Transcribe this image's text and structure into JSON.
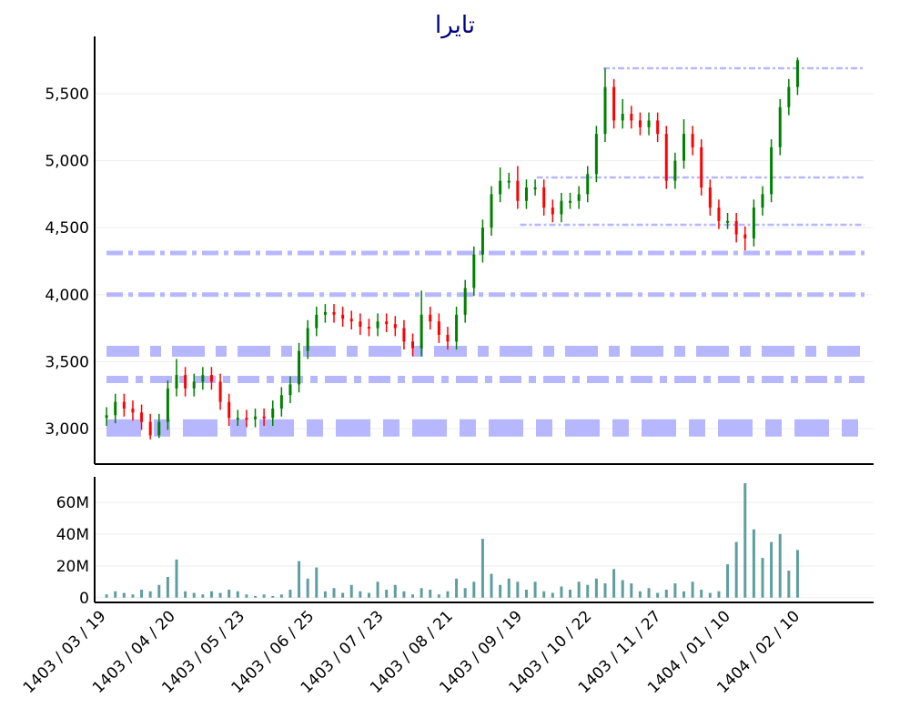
{
  "chart_data": {
    "type": "candlestick",
    "title": "تایرا",
    "colors": {
      "up": "#008000",
      "down": "#ff0000",
      "volume": "#5f9ea0",
      "level": "#b3b3ff",
      "title": "#000080",
      "grid": "#eeeeee"
    },
    "x_end_index": 249,
    "xlim": [
      -4.3,
      276.4
    ],
    "x_ticks": [
      {
        "index": 0,
        "label": "1403 / 03 / 19"
      },
      {
        "index": 25,
        "label": "1403 / 04 / 20"
      },
      {
        "index": 50,
        "label": "1403 / 05 / 23"
      },
      {
        "index": 75,
        "label": "1403 / 06 / 25"
      },
      {
        "index": 100,
        "label": "1403 / 07 / 23"
      },
      {
        "index": 125,
        "label": "1403 / 08 / 21"
      },
      {
        "index": 150,
        "label": "1403 / 09 / 19"
      },
      {
        "index": 175,
        "label": "1403 / 10 / 22"
      },
      {
        "index": 200,
        "label": "1403 / 11 / 27"
      },
      {
        "index": 225,
        "label": "1404 / 01 / 10"
      },
      {
        "index": 250,
        "label": "1404 / 02 / 10"
      }
    ],
    "price_axis": {
      "ylim": [
        2735,
        5928
      ],
      "ticks": [
        3000,
        3500,
        4000,
        4500,
        5000,
        5500
      ],
      "tick_labels": [
        "3,000",
        "3,500",
        "4,000",
        "4,500",
        "5,000",
        "5,500"
      ]
    },
    "volume_axis": {
      "ylim": [
        -3,
        76
      ],
      "ticks": [
        0,
        20,
        40,
        60
      ],
      "tick_labels": [
        "0",
        "20M",
        "40M",
        "60M"
      ],
      "unit": "M"
    },
    "open": [
      3080,
      3100,
      3200,
      3150,
      3120,
      3050,
      2950,
      3050,
      3300,
      3400,
      3300,
      3350,
      3400,
      3350,
      3200,
      3080,
      3080,
      3070,
      3090,
      3080,
      3150,
      3250,
      3330,
      3580,
      3750,
      3850,
      3870,
      3850,
      3820,
      3800,
      3760,
      3750,
      3800,
      3780,
      3750,
      3650,
      3600,
      3850,
      3800,
      3700,
      3650,
      3850,
      4050,
      4300,
      4500,
      4750,
      4850,
      4850,
      4700,
      4800,
      4800,
      4650,
      4600,
      4700,
      4700,
      4750,
      4900,
      5200,
      5550,
      5300,
      5350,
      5300,
      5250,
      5300,
      5200,
      4850,
      5000,
      5200,
      5100,
      4800,
      4650,
      4550,
      4550,
      4450,
      4420,
      4650,
      4750,
      5100,
      5400,
      5550
    ],
    "high": [
      3160,
      3260,
      3260,
      3210,
      3180,
      3110,
      3110,
      3360,
      3520,
      3460,
      3410,
      3460,
      3460,
      3410,
      3260,
      3140,
      3140,
      3150,
      3150,
      3210,
      3310,
      3390,
      3640,
      3810,
      3910,
      3930,
      3930,
      3910,
      3880,
      3860,
      3820,
      3860,
      3860,
      3840,
      3810,
      3710,
      4030,
      3910,
      3860,
      3760,
      3910,
      4110,
      4360,
      4560,
      4810,
      4950,
      4910,
      4960,
      4860,
      4860,
      4860,
      4710,
      4760,
      4760,
      4810,
      4960,
      5260,
      5690,
      5610,
      5460,
      5410,
      5360,
      5360,
      5360,
      5260,
      5060,
      5310,
      5260,
      5160,
      4860,
      4710,
      4610,
      4610,
      4510,
      4710,
      4810,
      5160,
      5460,
      5610,
      5770
    ],
    "low": [
      3020,
      3040,
      3090,
      3060,
      2990,
      2920,
      2930,
      2990,
      3240,
      3240,
      3240,
      3290,
      3290,
      3140,
      3020,
      3020,
      3010,
      3010,
      3020,
      3020,
      3090,
      3190,
      3270,
      3520,
      3690,
      3790,
      3790,
      3760,
      3740,
      3700,
      3690,
      3690,
      3720,
      3690,
      3590,
      3540,
      3540,
      3740,
      3640,
      3590,
      3590,
      3790,
      3990,
      4240,
      4440,
      4690,
      4790,
      4640,
      4640,
      4740,
      4590,
      4540,
      4540,
      4640,
      4640,
      4690,
      4840,
      5140,
      5240,
      5240,
      5240,
      5190,
      5190,
      5140,
      4790,
      4790,
      4940,
      5040,
      4740,
      4590,
      4490,
      4490,
      4390,
      4330,
      4360,
      4590,
      4690,
      5040,
      5340,
      5490
    ],
    "close": [
      3100,
      3200,
      3150,
      3120,
      3050,
      2950,
      3050,
      3300,
      3400,
      3300,
      3350,
      3400,
      3350,
      3200,
      3080,
      3080,
      3070,
      3090,
      3080,
      3150,
      3250,
      3330,
      3580,
      3750,
      3850,
      3870,
      3850,
      3820,
      3800,
      3760,
      3750,
      3800,
      3780,
      3750,
      3650,
      3600,
      3850,
      3800,
      3700,
      3650,
      3850,
      4050,
      4300,
      4500,
      4750,
      4850,
      4850,
      4700,
      4800,
      4800,
      4650,
      4600,
      4700,
      4700,
      4750,
      4900,
      5200,
      5550,
      5300,
      5350,
      5300,
      5250,
      5300,
      5200,
      4850,
      5000,
      5200,
      5100,
      4800,
      4650,
      4550,
      4550,
      4450,
      4420,
      4650,
      4750,
      5100,
      5400,
      5550,
      5750
    ],
    "volume": [
      2,
      4,
      3,
      2,
      5,
      4,
      8,
      13,
      24,
      4,
      3,
      2,
      4,
      3,
      5,
      4,
      2,
      1,
      2,
      1,
      2,
      5,
      23,
      12,
      19,
      4,
      6,
      3,
      8,
      4,
      3,
      10,
      5,
      8,
      4,
      2,
      6,
      5,
      2,
      4,
      12,
      6,
      10,
      37,
      15,
      8,
      12,
      10,
      5,
      10,
      4,
      3,
      7,
      5,
      10,
      8,
      12,
      9,
      18,
      11,
      9,
      4,
      6,
      3,
      5,
      9,
      4,
      10,
      5,
      3,
      4,
      21,
      35,
      72,
      43,
      25,
      35,
      40,
      17,
      30
    ],
    "levels": [
      {
        "price": 5690,
        "from_index": 179,
        "strength": "weak"
      },
      {
        "price": 4875,
        "from_index": 155,
        "strength": "weak"
      },
      {
        "price": 4522,
        "from_index": 149,
        "strength": "weak"
      },
      {
        "price": 4311,
        "from_index": 0,
        "strength": "medium"
      },
      {
        "price": 4000,
        "from_index": 0,
        "strength": "medium"
      },
      {
        "price": 3577,
        "from_index": 0,
        "strength": "strong"
      },
      {
        "price": 3367,
        "from_index": 0,
        "strength": "medium-strong"
      },
      {
        "price": 3005,
        "from_index": 0,
        "strength": "very-strong"
      }
    ]
  }
}
